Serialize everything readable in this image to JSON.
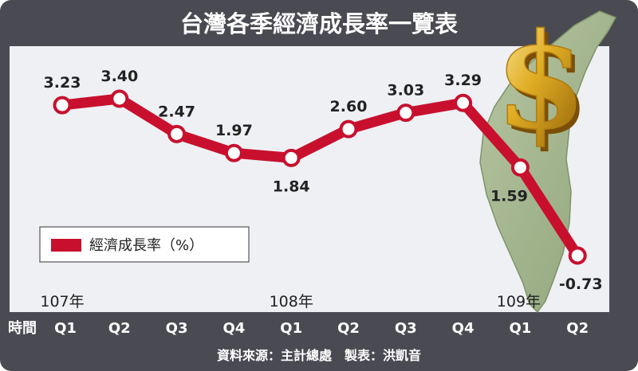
{
  "chart_data": {
    "type": "line",
    "title": "台灣各季經濟成長率一覽表",
    "x_axis_label": "時間",
    "categories": [
      "Q1",
      "Q2",
      "Q3",
      "Q4",
      "Q1",
      "Q2",
      "Q3",
      "Q4",
      "Q1",
      "Q2"
    ],
    "year_labels": [
      {
        "label": "107年",
        "category_index": 0
      },
      {
        "label": "108年",
        "category_index": 4
      },
      {
        "label": "109年",
        "category_index": 8
      }
    ],
    "series": [
      {
        "name": "經濟成長率（%）",
        "color": "#c8102e",
        "values": [
          3.23,
          3.4,
          2.47,
          1.97,
          1.84,
          2.6,
          3.03,
          3.29,
          1.59,
          -0.73
        ]
      }
    ],
    "value_labels": [
      "3.23",
      "3.40",
      "2.47",
      "1.97",
      "1.84",
      "2.60",
      "3.03",
      "3.29",
      "1.59",
      "-0.73"
    ],
    "ylim": [
      -0.73,
      3.4
    ],
    "grid": false,
    "legend_position": "left-middle",
    "source_note": "資料來源：主計總處　製表：洪凱音"
  },
  "colors": {
    "frame": "#4a4a52",
    "plot_background": "#eef0f4",
    "line": "#c8102e",
    "marker_fill": "#ffffff",
    "gold": "#d8a31a"
  },
  "icons": [
    "gold-dollar-sign-icon",
    "taiwan-map-icon"
  ]
}
